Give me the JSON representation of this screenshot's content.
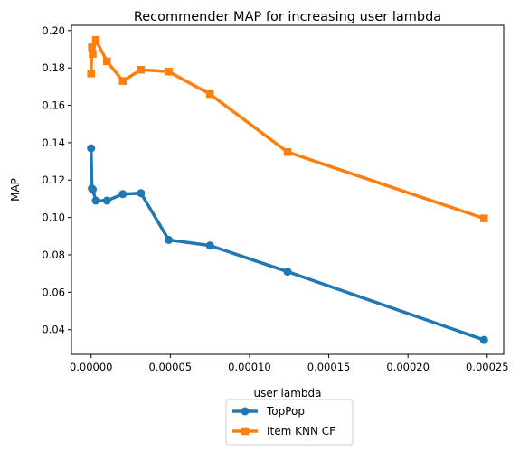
{
  "chart_data": {
    "type": "line",
    "title": "Recommender MAP for increasing user lambda",
    "xlabel": "user lambda",
    "ylabel": "MAP",
    "xlim": [
      -1.24e-05,
      0.0002604
    ],
    "ylim": [
      0.0268,
      0.2028
    ],
    "x_ticks": [
      0.0,
      5e-05,
      0.0001,
      0.00015,
      0.0002,
      0.00025
    ],
    "x_tick_labels": [
      "0.00000",
      "0.00005",
      "0.00010",
      "0.00015",
      "0.00020",
      "0.00025"
    ],
    "y_ticks": [
      0.04,
      0.06,
      0.08,
      0.1,
      0.12,
      0.14,
      0.16,
      0.18,
      0.2
    ],
    "y_tick_labels": [
      "0.04",
      "0.06",
      "0.08",
      "0.10",
      "0.12",
      "0.14",
      "0.16",
      "0.18",
      "0.20"
    ],
    "grid": false,
    "legend_position": "below chart, centered",
    "series": [
      {
        "name": "TopPop",
        "color": "#1f77b4",
        "marker": "circle",
        "x": [
          0.0,
          5e-07,
          1e-06,
          3e-06,
          1e-05,
          2e-05,
          3.15e-05,
          4.9e-05,
          7.5e-05,
          0.000124,
          0.000248
        ],
        "y": [
          0.137,
          0.1155,
          0.115,
          0.109,
          0.109,
          0.1125,
          0.113,
          0.088,
          0.085,
          0.071,
          0.0345
        ]
      },
      {
        "name": "Item KNN CF",
        "color": "#ff7f0e",
        "marker": "square",
        "x": [
          0.0,
          5e-07,
          1e-06,
          3e-06,
          1e-05,
          2e-05,
          3.15e-05,
          4.9e-05,
          7.5e-05,
          0.000124,
          0.000248
        ],
        "y": [
          0.177,
          0.191,
          0.1875,
          0.195,
          0.1835,
          0.173,
          0.179,
          0.178,
          0.166,
          0.135,
          0.0995
        ]
      }
    ]
  }
}
